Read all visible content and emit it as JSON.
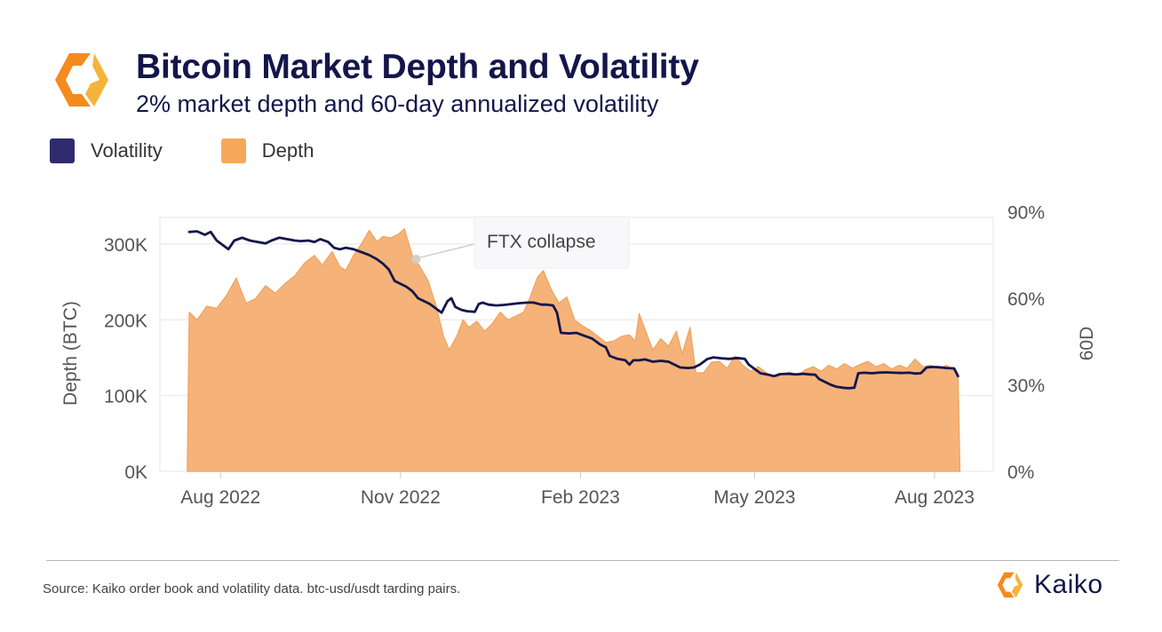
{
  "header": {
    "title": "Bitcoin Market Depth and Volatility",
    "subtitle": "2% market depth and 60-day annualized volatility"
  },
  "legend": [
    {
      "label": "Volatility",
      "color": "#2d2b6e"
    },
    {
      "label": "Depth",
      "color": "#f5a85a"
    }
  ],
  "annotation": {
    "text": "FTX collapse",
    "date": "2022-11-09"
  },
  "footer": {
    "source": "Source: Kaiko order book and volatility data. btc-usd/usdt tarding pairs.",
    "brand": "Kaiko"
  },
  "colors": {
    "depth_fill": "#f5b37a",
    "depth_stroke": "#f0a15a",
    "volatility_line": "#14164a",
    "grid": "#e6e6e6",
    "axis_text": "#555555"
  },
  "chart_data": {
    "type": "area",
    "x_axis": {
      "type": "date",
      "ticks": [
        "Aug 2022",
        "Nov 2022",
        "Feb 2023",
        "May 2023",
        "Aug 2023"
      ],
      "tick_dates": [
        "2022-08-01",
        "2022-11-01",
        "2023-02-01",
        "2023-05-01",
        "2023-08-01"
      ],
      "range": [
        "2022-07-01",
        "2023-08-31"
      ]
    },
    "y_left": {
      "label": "Depth (BTC)",
      "ticks": [
        "0K",
        "100K",
        "200K",
        "300K"
      ],
      "range": [
        0,
        335000
      ]
    },
    "y_right": {
      "label": "60D",
      "ticks": [
        "0%",
        "30%",
        "60%",
        "90%"
      ],
      "range": [
        0,
        0.88
      ]
    },
    "grid": true,
    "legend_position": "top-left",
    "series": [
      {
        "name": "Depth",
        "type": "area",
        "axis": "left",
        "points": [
          [
            "2022-07-15",
            0
          ],
          [
            "2022-07-16",
            210000
          ],
          [
            "2022-07-20",
            200000
          ],
          [
            "2022-07-25",
            218000
          ],
          [
            "2022-07-30",
            215000
          ],
          [
            "2022-08-04",
            232000
          ],
          [
            "2022-08-09",
            255000
          ],
          [
            "2022-08-14",
            222000
          ],
          [
            "2022-08-19",
            228000
          ],
          [
            "2022-08-24",
            245000
          ],
          [
            "2022-08-29",
            235000
          ],
          [
            "2022-09-03",
            248000
          ],
          [
            "2022-09-08",
            258000
          ],
          [
            "2022-09-13",
            275000
          ],
          [
            "2022-09-18",
            285000
          ],
          [
            "2022-09-22",
            272000
          ],
          [
            "2022-09-27",
            290000
          ],
          [
            "2022-10-01",
            270000
          ],
          [
            "2022-10-04",
            265000
          ],
          [
            "2022-10-08",
            285000
          ],
          [
            "2022-10-12",
            300000
          ],
          [
            "2022-10-16",
            318000
          ],
          [
            "2022-10-20",
            303000
          ],
          [
            "2022-10-23",
            310000
          ],
          [
            "2022-10-27",
            308000
          ],
          [
            "2022-10-31",
            313000
          ],
          [
            "2022-11-03",
            320000
          ],
          [
            "2022-11-07",
            285000
          ],
          [
            "2022-11-11",
            270000
          ],
          [
            "2022-11-15",
            252000
          ],
          [
            "2022-11-19",
            220000
          ],
          [
            "2022-11-23",
            178000
          ],
          [
            "2022-11-26",
            160000
          ],
          [
            "2022-11-30",
            180000
          ],
          [
            "2022-12-03",
            200000
          ],
          [
            "2022-12-06",
            190000
          ],
          [
            "2022-12-10",
            198000
          ],
          [
            "2022-12-14",
            185000
          ],
          [
            "2022-12-18",
            195000
          ],
          [
            "2022-12-22",
            210000
          ],
          [
            "2022-12-26",
            200000
          ],
          [
            "2022-12-30",
            205000
          ],
          [
            "2023-01-03",
            210000
          ],
          [
            "2023-01-06",
            228000
          ],
          [
            "2023-01-10",
            256000
          ],
          [
            "2023-01-13",
            265000
          ],
          [
            "2023-01-17",
            240000
          ],
          [
            "2023-01-21",
            222000
          ],
          [
            "2023-01-25",
            230000
          ],
          [
            "2023-01-29",
            200000
          ],
          [
            "2023-02-02",
            192000
          ],
          [
            "2023-02-06",
            186000
          ],
          [
            "2023-02-10",
            178000
          ],
          [
            "2023-02-14",
            170000
          ],
          [
            "2023-02-18",
            172000
          ],
          [
            "2023-02-22",
            178000
          ],
          [
            "2023-02-26",
            180000
          ],
          [
            "2023-03-01",
            172000
          ],
          [
            "2023-03-03",
            208000
          ],
          [
            "2023-03-07",
            180000
          ],
          [
            "2023-03-10",
            160000
          ],
          [
            "2023-03-14",
            175000
          ],
          [
            "2023-03-18",
            165000
          ],
          [
            "2023-03-22",
            185000
          ],
          [
            "2023-03-25",
            155000
          ],
          [
            "2023-03-29",
            190000
          ],
          [
            "2023-04-01",
            130000
          ],
          [
            "2023-04-05",
            130000
          ],
          [
            "2023-04-09",
            144000
          ],
          [
            "2023-04-13",
            145000
          ],
          [
            "2023-04-17",
            136000
          ],
          [
            "2023-04-21",
            152000
          ],
          [
            "2023-04-25",
            140000
          ],
          [
            "2023-04-29",
            132000
          ],
          [
            "2023-05-03",
            138000
          ],
          [
            "2023-05-07",
            130000
          ],
          [
            "2023-05-11",
            122000
          ],
          [
            "2023-05-15",
            128000
          ],
          [
            "2023-05-19",
            131000
          ],
          [
            "2023-05-23",
            127000
          ],
          [
            "2023-05-27",
            134000
          ],
          [
            "2023-05-31",
            138000
          ],
          [
            "2023-06-04",
            132000
          ],
          [
            "2023-06-08",
            140000
          ],
          [
            "2023-06-12",
            135000
          ],
          [
            "2023-06-16",
            142000
          ],
          [
            "2023-06-20",
            136000
          ],
          [
            "2023-06-24",
            141000
          ],
          [
            "2023-06-28",
            145000
          ],
          [
            "2023-07-02",
            138000
          ],
          [
            "2023-07-06",
            142000
          ],
          [
            "2023-07-10",
            135000
          ],
          [
            "2023-07-14",
            140000
          ],
          [
            "2023-07-18",
            136000
          ],
          [
            "2023-07-22",
            148000
          ],
          [
            "2023-07-26",
            138000
          ],
          [
            "2023-07-30",
            140000
          ],
          [
            "2023-08-03",
            135000
          ],
          [
            "2023-08-07",
            140000
          ],
          [
            "2023-08-10",
            135000
          ],
          [
            "2023-08-13",
            127000
          ],
          [
            "2023-08-14",
            0
          ]
        ]
      },
      {
        "name": "Volatility",
        "type": "line",
        "axis": "right",
        "points": [
          [
            "2022-07-16",
            0.83
          ],
          [
            "2022-07-20",
            0.832
          ],
          [
            "2022-07-24",
            0.82
          ],
          [
            "2022-07-27",
            0.83
          ],
          [
            "2022-07-30",
            0.8
          ],
          [
            "2022-08-03",
            0.78
          ],
          [
            "2022-08-05",
            0.77
          ],
          [
            "2022-08-08",
            0.8
          ],
          [
            "2022-08-12",
            0.81
          ],
          [
            "2022-08-16",
            0.8
          ],
          [
            "2022-08-20",
            0.795
          ],
          [
            "2022-08-24",
            0.79
          ],
          [
            "2022-08-27",
            0.8
          ],
          [
            "2022-08-31",
            0.81
          ],
          [
            "2022-09-04",
            0.805
          ],
          [
            "2022-09-08",
            0.8
          ],
          [
            "2022-09-11",
            0.798
          ],
          [
            "2022-09-15",
            0.8
          ],
          [
            "2022-09-18",
            0.795
          ],
          [
            "2022-09-21",
            0.805
          ],
          [
            "2022-09-25",
            0.795
          ],
          [
            "2022-09-28",
            0.775
          ],
          [
            "2022-10-01",
            0.77
          ],
          [
            "2022-10-04",
            0.775
          ],
          [
            "2022-10-08",
            0.77
          ],
          [
            "2022-10-12",
            0.76
          ],
          [
            "2022-10-16",
            0.75
          ],
          [
            "2022-10-20",
            0.735
          ],
          [
            "2022-10-23",
            0.72
          ],
          [
            "2022-10-26",
            0.7
          ],
          [
            "2022-10-29",
            0.66
          ],
          [
            "2022-11-01",
            0.65
          ],
          [
            "2022-11-04",
            0.64
          ],
          [
            "2022-11-07",
            0.625
          ],
          [
            "2022-11-10",
            0.6
          ],
          [
            "2022-11-13",
            0.59
          ],
          [
            "2022-11-16",
            0.58
          ],
          [
            "2022-11-19",
            0.565
          ],
          [
            "2022-11-22",
            0.55
          ],
          [
            "2022-11-25",
            0.59
          ],
          [
            "2022-11-27",
            0.6
          ],
          [
            "2022-11-29",
            0.57
          ],
          [
            "2022-12-02",
            0.56
          ],
          [
            "2022-12-05",
            0.555
          ],
          [
            "2022-12-09",
            0.553
          ],
          [
            "2022-12-11",
            0.58
          ],
          [
            "2022-12-13",
            0.585
          ],
          [
            "2022-12-16",
            0.578
          ],
          [
            "2022-12-20",
            0.575
          ],
          [
            "2022-12-24",
            0.577
          ],
          [
            "2022-12-28",
            0.58
          ],
          [
            "2023-01-01",
            0.583
          ],
          [
            "2023-01-05",
            0.585
          ],
          [
            "2023-01-08",
            0.585
          ],
          [
            "2023-01-12",
            0.578
          ],
          [
            "2023-01-15",
            0.578
          ],
          [
            "2023-01-18",
            0.575
          ],
          [
            "2023-01-20",
            0.55
          ],
          [
            "2023-01-22",
            0.48
          ],
          [
            "2023-01-26",
            0.478
          ],
          [
            "2023-01-30",
            0.48
          ],
          [
            "2023-02-03",
            0.47
          ],
          [
            "2023-02-07",
            0.46
          ],
          [
            "2023-02-11",
            0.44
          ],
          [
            "2023-02-14",
            0.43
          ],
          [
            "2023-02-16",
            0.4
          ],
          [
            "2023-02-20",
            0.39
          ],
          [
            "2023-02-24",
            0.385
          ],
          [
            "2023-02-26",
            0.37
          ],
          [
            "2023-02-28",
            0.385
          ],
          [
            "2023-03-03",
            0.385
          ],
          [
            "2023-03-06",
            0.388
          ],
          [
            "2023-03-10",
            0.38
          ],
          [
            "2023-03-14",
            0.383
          ],
          [
            "2023-03-18",
            0.38
          ],
          [
            "2023-03-21",
            0.37
          ],
          [
            "2023-03-24",
            0.36
          ],
          [
            "2023-03-28",
            0.358
          ],
          [
            "2023-03-31",
            0.36
          ],
          [
            "2023-04-03",
            0.37
          ],
          [
            "2023-04-07",
            0.39
          ],
          [
            "2023-04-10",
            0.395
          ],
          [
            "2023-04-14",
            0.392
          ],
          [
            "2023-04-18",
            0.39
          ],
          [
            "2023-04-22",
            0.393
          ],
          [
            "2023-04-26",
            0.39
          ],
          [
            "2023-04-28",
            0.37
          ],
          [
            "2023-05-01",
            0.355
          ],
          [
            "2023-05-04",
            0.34
          ],
          [
            "2023-05-08",
            0.335
          ],
          [
            "2023-05-11",
            0.33
          ],
          [
            "2023-05-14",
            0.337
          ],
          [
            "2023-05-18",
            0.338
          ],
          [
            "2023-05-22",
            0.336
          ],
          [
            "2023-05-26",
            0.338
          ],
          [
            "2023-05-29",
            0.336
          ],
          [
            "2023-06-01",
            0.335
          ],
          [
            "2023-06-03",
            0.32
          ],
          [
            "2023-06-06",
            0.31
          ],
          [
            "2023-06-09",
            0.3
          ],
          [
            "2023-06-12",
            0.293
          ],
          [
            "2023-06-15",
            0.29
          ],
          [
            "2023-06-18",
            0.288
          ],
          [
            "2023-06-21",
            0.29
          ],
          [
            "2023-06-23",
            0.34
          ],
          [
            "2023-06-26",
            0.342
          ],
          [
            "2023-06-30",
            0.34
          ],
          [
            "2023-07-03",
            0.342
          ],
          [
            "2023-07-07",
            0.343
          ],
          [
            "2023-07-11",
            0.342
          ],
          [
            "2023-07-15",
            0.341
          ],
          [
            "2023-07-19",
            0.342
          ],
          [
            "2023-07-22",
            0.339
          ],
          [
            "2023-07-25",
            0.34
          ],
          [
            "2023-07-28",
            0.36
          ],
          [
            "2023-07-31",
            0.362
          ],
          [
            "2023-08-03",
            0.361
          ],
          [
            "2023-08-07",
            0.358
          ],
          [
            "2023-08-11",
            0.357
          ],
          [
            "2023-08-13",
            0.33
          ]
        ]
      }
    ]
  }
}
